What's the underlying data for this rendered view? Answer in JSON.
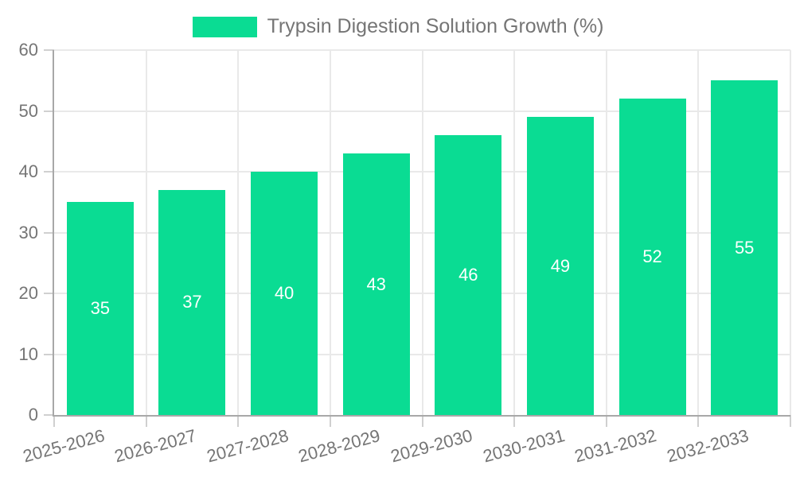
{
  "chart_data": {
    "type": "bar",
    "title": "Trypsin Digestion Solution Growth (%)",
    "series_name": "Trypsin Digestion Solution Growth (%)",
    "legend_position": "top",
    "categories": [
      "2025-2026",
      "2026-2027",
      "2027-2028",
      "2028-2029",
      "2029-2030",
      "2030-2031",
      "2031-2032",
      "2032-2033"
    ],
    "values": [
      35,
      37,
      40,
      43,
      46,
      49,
      52,
      55
    ],
    "value_labels": [
      "35",
      "37",
      "40",
      "43",
      "46",
      "49",
      "52",
      "55"
    ],
    "xlabel": "",
    "ylabel": "",
    "ylim": [
      0,
      60
    ],
    "y_ticks": [
      0,
      10,
      20,
      30,
      40,
      50,
      60
    ],
    "grid": "horizontal and vertical gridlines on",
    "x_label_rotation_deg": -15,
    "colors": {
      "bar": "#0adc93",
      "grid": "#e9e9e9",
      "axis": "#a8a8a8",
      "tick": "#d0d0d0",
      "text": "#757575",
      "bar_label": "#ffffff",
      "background": "#ffffff"
    }
  }
}
